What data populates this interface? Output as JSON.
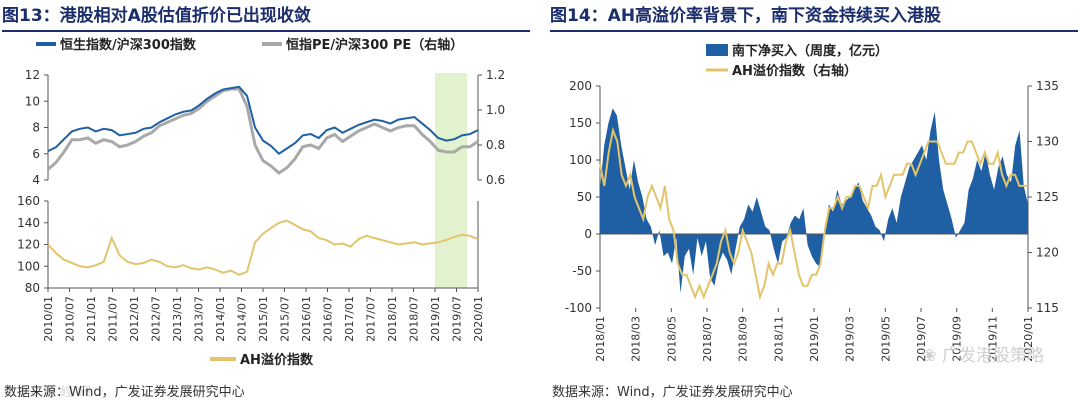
{
  "left": {
    "title": "图13：港股相对A股估值折价已出现收敛",
    "source": "数据来源：Wind，广发证券发展研究中心"
  },
  "right": {
    "title": "图14：AH高溢价率背景下，南下资金持续买入港股",
    "source": "数据来源：Wind，广发证券发展研究中心"
  },
  "watermark": "广发港股策略",
  "chart_data": [
    {
      "type": "line",
      "title": "图13：港股相对A股估值折价已出现收敛",
      "x_labels": [
        "2010/01",
        "2010/07",
        "2011/01",
        "2011/07",
        "2012/01",
        "2012/07",
        "2013/01",
        "2013/07",
        "2014/01",
        "2014/07",
        "2015/01",
        "2015/07",
        "2016/01",
        "2016/07",
        "2017/01",
        "2017/07",
        "2018/01",
        "2018/07",
        "2019/01",
        "2019/07",
        "2020/01"
      ],
      "highlight": {
        "from": "2019/01",
        "to": "2019/10",
        "color": "#e2f2cf"
      },
      "top": {
        "ylim_left": [
          4,
          12
        ],
        "yticks_left": [
          4,
          6,
          8,
          10,
          12
        ],
        "ylim_right": [
          0.6,
          1.2
        ],
        "yticks_right": [
          "0.6",
          "0.8",
          "1.0",
          "1.2"
        ],
        "series": [
          {
            "name": "恒生指数/沪深300指数",
            "axis": "left",
            "color": "#1f5fa3",
            "values": [
              6.2,
              6.5,
              7.1,
              7.7,
              7.9,
              8.0,
              7.7,
              7.9,
              7.8,
              7.4,
              7.5,
              7.6,
              7.9,
              8.0,
              8.4,
              8.7,
              9.0,
              9.2,
              9.3,
              9.7,
              10.2,
              10.6,
              10.9,
              11.0,
              11.1,
              10.4,
              8.0,
              7.0,
              6.6,
              6.0,
              6.4,
              6.8,
              7.4,
              7.5,
              7.2,
              7.8,
              8.0,
              7.6,
              7.9,
              8.2,
              8.4,
              8.6,
              8.5,
              8.3,
              8.6,
              8.7,
              8.8,
              8.3,
              7.8,
              7.2,
              7.0,
              7.1,
              7.4,
              7.5,
              7.8
            ]
          },
          {
            "name": "恒指PE/沪深300 PE（右轴）",
            "axis": "right",
            "color": "#a9a9a9",
            "values": [
              0.66,
              0.7,
              0.76,
              0.83,
              0.83,
              0.84,
              0.81,
              0.83,
              0.82,
              0.79,
              0.8,
              0.82,
              0.85,
              0.87,
              0.91,
              0.93,
              0.95,
              0.97,
              0.98,
              1.01,
              1.05,
              1.08,
              1.11,
              1.12,
              1.12,
              1.02,
              0.8,
              0.71,
              0.68,
              0.64,
              0.67,
              0.72,
              0.79,
              0.8,
              0.78,
              0.84,
              0.86,
              0.82,
              0.85,
              0.88,
              0.9,
              0.92,
              0.9,
              0.88,
              0.9,
              0.91,
              0.91,
              0.86,
              0.82,
              0.77,
              0.76,
              0.76,
              0.79,
              0.79,
              0.82
            ]
          }
        ]
      },
      "bottom": {
        "ylim": [
          80,
          160
        ],
        "yticks": [
          80,
          100,
          120,
          140,
          160
        ],
        "series": [
          {
            "name": "AH溢价指数",
            "color": "#e3c46c",
            "values": [
              120,
              112,
              106,
              103,
              100,
              99,
              101,
              104,
              126,
              110,
              104,
              102,
              103,
              106,
              104,
              100,
              99,
              101,
              98,
              97,
              99,
              97,
              94,
              96,
              92,
              95,
              122,
              130,
              135,
              140,
              142,
              138,
              134,
              132,
              126,
              124,
              120,
              121,
              118,
              125,
              128,
              126,
              124,
              122,
              120,
              121,
              122,
              120,
              121,
              122,
              124,
              127,
              129,
              128,
              125
            ]
          }
        ]
      }
    },
    {
      "type": "bar+line",
      "title": "图14：AH高溢价率背景下，南下资金持续买入港股",
      "x_labels": [
        "2018/01",
        "2018/03",
        "2018/05",
        "2018/07",
        "2018/09",
        "2018/11",
        "2019/01",
        "2019/03",
        "2019/05",
        "2019/07",
        "2019/09",
        "2019/11",
        "2020/01"
      ],
      "ylim_left": [
        -100,
        200
      ],
      "yticks_left": [
        -100,
        -50,
        0,
        50,
        100,
        150,
        200
      ],
      "ylim_right": [
        115,
        135
      ],
      "yticks_right": [
        115,
        120,
        125,
        130,
        135
      ],
      "series": [
        {
          "name": "南下净买入（周度，亿元）",
          "type": "area",
          "axis": "left",
          "color": "#1f5fa3",
          "values": [
            60,
            120,
            150,
            170,
            160,
            120,
            90,
            60,
            100,
            70,
            50,
            20,
            10,
            -15,
            5,
            -30,
            -25,
            -40,
            -5,
            -80,
            -30,
            -20,
            -55,
            -5,
            -30,
            -10,
            -60,
            -70,
            -40,
            -25,
            -35,
            -55,
            -20,
            10,
            20,
            40,
            30,
            50,
            30,
            10,
            5,
            -20,
            -40,
            -10,
            -5,
            15,
            25,
            20,
            35,
            -15,
            -30,
            -40,
            -45,
            5,
            40,
            30,
            60,
            40,
            45,
            50,
            60,
            70,
            45,
            35,
            25,
            10,
            5,
            -10,
            20,
            35,
            15,
            50,
            70,
            90,
            100,
            110,
            120,
            100,
            140,
            165,
            100,
            60,
            40,
            20,
            -5,
            5,
            15,
            60,
            75,
            100,
            85,
            110,
            80,
            60,
            90,
            105,
            80,
            70,
            120,
            140,
            65,
            40
          ]
        },
        {
          "name": "AH溢价指数（右轴）",
          "type": "line",
          "axis": "right",
          "color": "#e3c46c",
          "values": [
            128,
            126,
            129,
            131,
            130,
            127,
            126,
            127,
            125,
            124,
            123,
            125,
            126,
            125,
            124,
            126,
            123,
            122,
            119,
            118,
            118,
            117,
            116,
            117,
            116,
            117,
            118,
            119,
            121,
            122,
            120,
            119,
            120,
            122,
            121,
            120,
            118,
            116,
            117,
            119,
            118,
            119,
            119,
            121,
            122,
            120,
            118,
            117,
            117,
            118,
            118,
            119,
            122,
            124,
            124,
            125,
            124,
            125,
            125,
            126,
            126,
            125,
            124,
            126,
            126,
            127,
            125,
            126,
            127,
            127,
            127,
            128,
            128,
            127,
            128,
            129,
            130,
            130,
            130,
            129,
            128,
            128,
            128,
            129,
            129,
            130,
            130,
            129,
            128,
            129,
            128,
            128,
            129,
            127,
            126,
            127,
            127,
            126,
            126,
            126
          ]
        }
      ]
    }
  ]
}
